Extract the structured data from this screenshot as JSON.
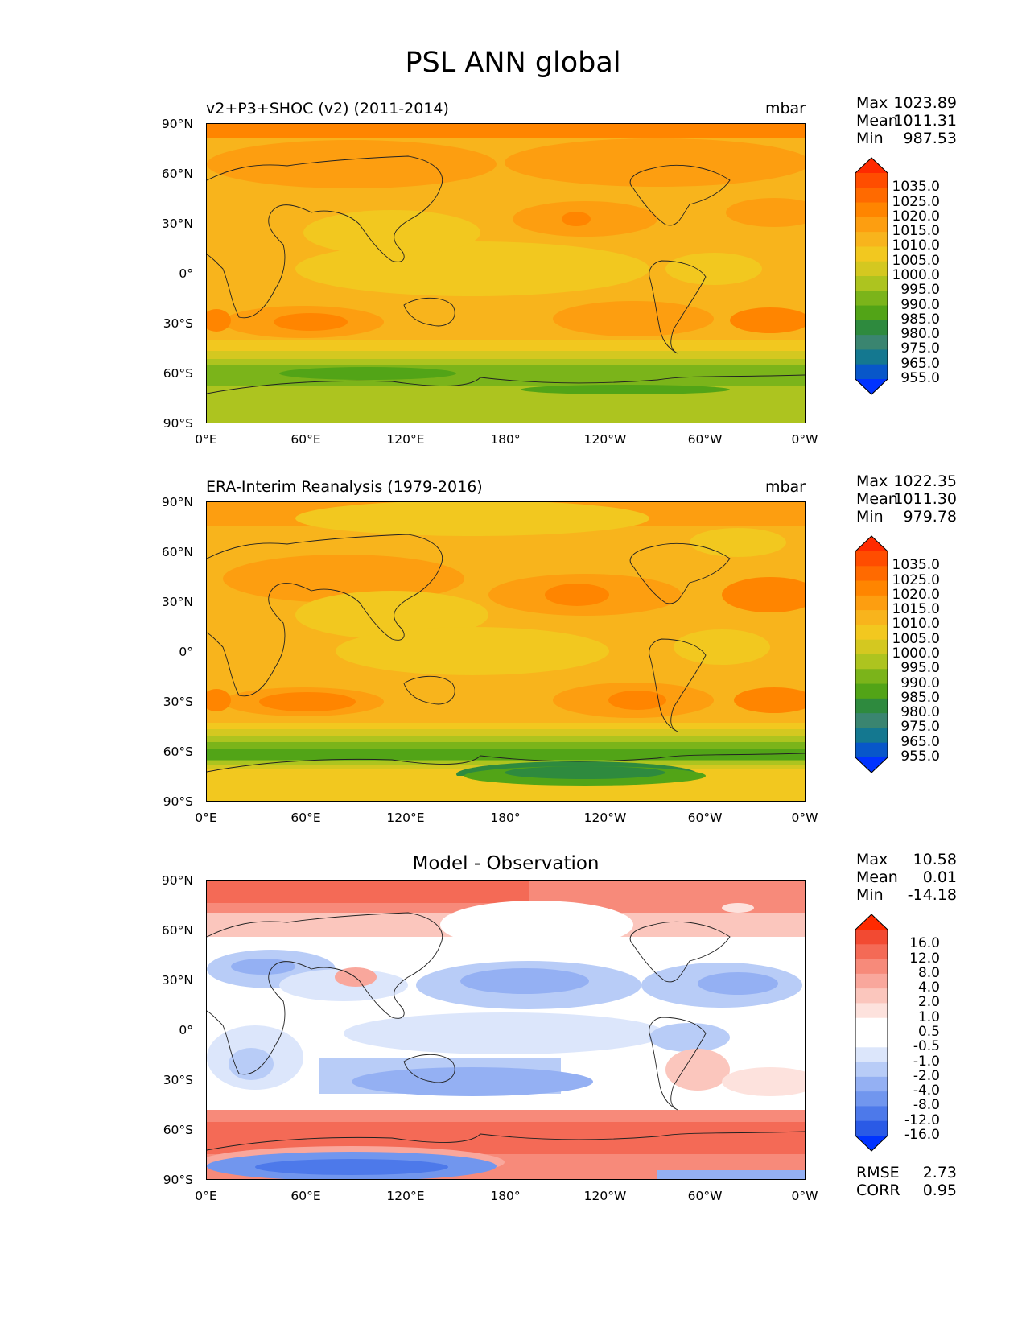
{
  "title": "PSL ANN global",
  "axis": {
    "y_ticks": [
      "90°N",
      "60°N",
      "30°N",
      "0°",
      "30°S",
      "60°S",
      "90°S"
    ],
    "x_ticks": [
      "0°E",
      "60°E",
      "120°E",
      "180°",
      "120°W",
      "60°W",
      "0°W"
    ]
  },
  "panels": [
    {
      "title_left": "v2+P3+SHOC (v2) (2011-2014)",
      "title_right": "mbar",
      "stats": [
        {
          "label": "Max",
          "value": "1023.89"
        },
        {
          "label": "Mean",
          "value": "1011.31"
        },
        {
          "label": "Min",
          "value": "987.53"
        }
      ],
      "colorbar": {
        "labels": [
          "1035.0",
          "1025.0",
          "1020.0",
          "1015.0",
          "1010.0",
          "1005.0",
          "1000.0",
          "995.0",
          "990.0",
          "985.0",
          "980.0",
          "975.0",
          "965.0",
          "955.0"
        ],
        "colors": [
          "#ff2a00",
          "#ff4d00",
          "#ff6a00",
          "#ff8500",
          "#fd9e10",
          "#f8b41c",
          "#f2c81f",
          "#d4c820",
          "#adc41f",
          "#7bb41a",
          "#52a417",
          "#2e8a3e",
          "#3a8570",
          "#147890",
          "#0857c9",
          "#0033ff"
        ]
      }
    },
    {
      "title_left": "ERA-Interim Reanalysis (1979-2016)",
      "title_right": "mbar",
      "stats": [
        {
          "label": "Max",
          "value": "1022.35"
        },
        {
          "label": "Mean",
          "value": "1011.30"
        },
        {
          "label": "Min",
          "value": "979.78"
        }
      ],
      "colorbar": {
        "labels": [
          "1035.0",
          "1025.0",
          "1020.0",
          "1015.0",
          "1010.0",
          "1005.0",
          "1000.0",
          "995.0",
          "990.0",
          "985.0",
          "980.0",
          "975.0",
          "965.0",
          "955.0"
        ],
        "colors": [
          "#ff2a00",
          "#ff4d00",
          "#ff6a00",
          "#ff8500",
          "#fd9e10",
          "#f8b41c",
          "#f2c81f",
          "#d4c820",
          "#adc41f",
          "#7bb41a",
          "#52a417",
          "#2e8a3e",
          "#3a8570",
          "#147890",
          "#0857c9",
          "#0033ff"
        ]
      }
    },
    {
      "title_center": "Model - Observation",
      "stats": [
        {
          "label": "Max",
          "value": "10.58"
        },
        {
          "label": "Mean",
          "value": "0.01"
        },
        {
          "label": "Min",
          "value": "-14.18"
        }
      ],
      "colorbar": {
        "labels": [
          "16.0",
          "12.0",
          "8.0",
          "4.0",
          "2.0",
          "1.0",
          "0.5",
          "-0.5",
          "-1.0",
          "-2.0",
          "-4.0",
          "-8.0",
          "-12.0",
          "-16.0"
        ],
        "colors": [
          "#ff2a00",
          "#f24a32",
          "#f46a56",
          "#f78a7a",
          "#f9a79c",
          "#fbc6bd",
          "#fde2dd",
          "#ffffff",
          "#ffffff",
          "#dce6fb",
          "#b8ccf7",
          "#94b0f3",
          "#7196ee",
          "#4d79ea",
          "#2a5ae6",
          "#0033ff"
        ]
      },
      "extra_stats": [
        {
          "label": "RMSE",
          "value": "2.73"
        },
        {
          "label": "CORR",
          "value": "0.95"
        }
      ]
    }
  ]
}
